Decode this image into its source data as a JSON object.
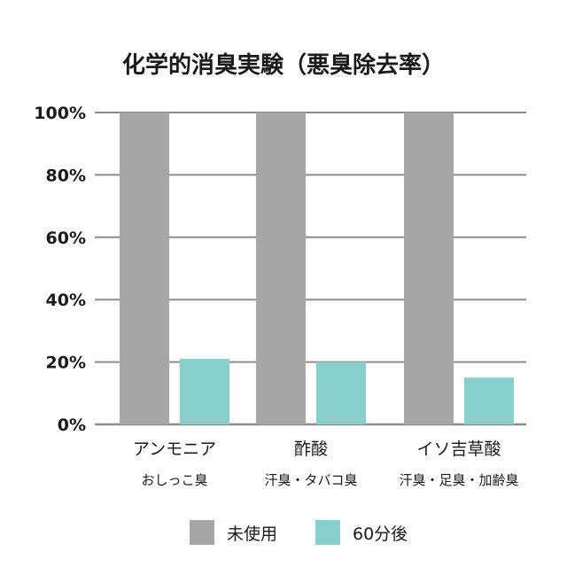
{
  "chart_data": {
    "type": "bar",
    "title": "化学的消臭実験（悪臭除去率）",
    "categories": [
      {
        "main": "アンモニア",
        "sub": "おしっこ臭"
      },
      {
        "main": "酢酸",
        "sub": "汗臭・タバコ臭"
      },
      {
        "main": "イソ吉草酸",
        "sub": "汗臭・足臭・加齢臭"
      }
    ],
    "series": [
      {
        "name": "未使用",
        "values": [
          100,
          100,
          100
        ],
        "color": "#a6a6a8"
      },
      {
        "name": "60分後",
        "values": [
          21,
          20,
          15
        ],
        "color": "#87cfca"
      }
    ],
    "y_ticks": [
      "0%",
      "20%",
      "40%",
      "60%",
      "80%",
      "100%"
    ],
    "ylim": [
      0,
      100
    ],
    "grid": true,
    "legend_position": "bottom",
    "xlabel": "",
    "ylabel": ""
  }
}
